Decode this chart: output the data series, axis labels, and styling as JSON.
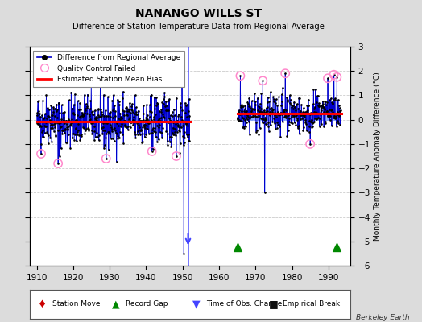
{
  "title": "NANANGO WILLS ST",
  "subtitle": "Difference of Station Temperature Data from Regional Average",
  "ylabel": "Monthly Temperature Anomaly Difference (°C)",
  "xlim": [
    1908,
    1996
  ],
  "ylim": [
    -6,
    3
  ],
  "yticks": [
    -6,
    -5,
    -4,
    -3,
    -2,
    -1,
    0,
    1,
    2,
    3
  ],
  "xticks": [
    1910,
    1920,
    1930,
    1940,
    1950,
    1960,
    1970,
    1980,
    1990
  ],
  "background_color": "#dcdcdc",
  "plot_bg_color": "#ffffff",
  "period1_start": 1910.0,
  "period1_end": 1952.0,
  "period2_start": 1965.0,
  "period2_end": 1993.5,
  "bias1": -0.07,
  "bias2": 0.27,
  "time_of_obs_x": 1951.5,
  "record_gap_x1": 1965.0,
  "record_gap_x2": 1992.3,
  "deep_outlier1_year": 1950.4,
  "deep_outlier1_val": -5.5,
  "deep_outlier2_year": 1972.5,
  "deep_outlier2_val": -3.0,
  "qc1_indices": [
    14,
    70,
    228,
    379,
    459
  ],
  "qc2_indices": [
    10,
    84,
    158,
    240,
    298,
    318,
    328
  ],
  "seed": 42,
  "stem_color": "#7799ff",
  "line_color": "#0000cc",
  "dot_color": "#000000",
  "qc_color": "#ff88cc",
  "bias_color": "#ff0000",
  "obs_change_color": "#4444ff",
  "gap_color": "#008800",
  "grid_color": "#cccccc"
}
